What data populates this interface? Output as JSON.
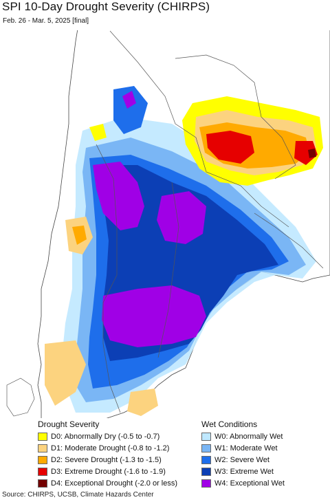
{
  "title": "SPI 10-Day Drought Severity (CHIRPS)",
  "subtitle": "Feb. 26 - Mar. 5, 2025 [final]",
  "colors": {
    "ocean": "#ffffff",
    "land": "#ffffff",
    "border": "#555555"
  },
  "legend": {
    "drought_heading": "Drought Severity",
    "wet_heading": "Wet Conditions",
    "drought_items": [
      {
        "label": "D0: Abnormally Dry (-0.5 to -0.7)",
        "color": "#ffff00"
      },
      {
        "label": "D1: Moderate Drought (-0.8 to -1.2)",
        "color": "#fcd37f"
      },
      {
        "label": "D2: Severe Drought (-1.3 to -1.5)",
        "color": "#ffaa00"
      },
      {
        "label": "D3: Extreme Drought (-1.6 to -1.9)",
        "color": "#e60000"
      },
      {
        "label": "D4: Exceptional Drought (-2.0 or less)",
        "color": "#730000"
      }
    ],
    "wet_items": [
      {
        "label": "W0: Abnormally Wet",
        "color": "#bfe8ff"
      },
      {
        "label": "W1: Moderate Wet",
        "color": "#7ab6f5"
      },
      {
        "label": "W2: Severe Wet",
        "color": "#1e6eeb"
      },
      {
        "label": "W3: Extreme Wet",
        "color": "#0c3fb5"
      },
      {
        "label": "W4: Exceptional Wet",
        "color": "#a000e6"
      }
    ]
  },
  "footer": "Source: CHIRPS, UCSB, Climate Hazards Center"
}
